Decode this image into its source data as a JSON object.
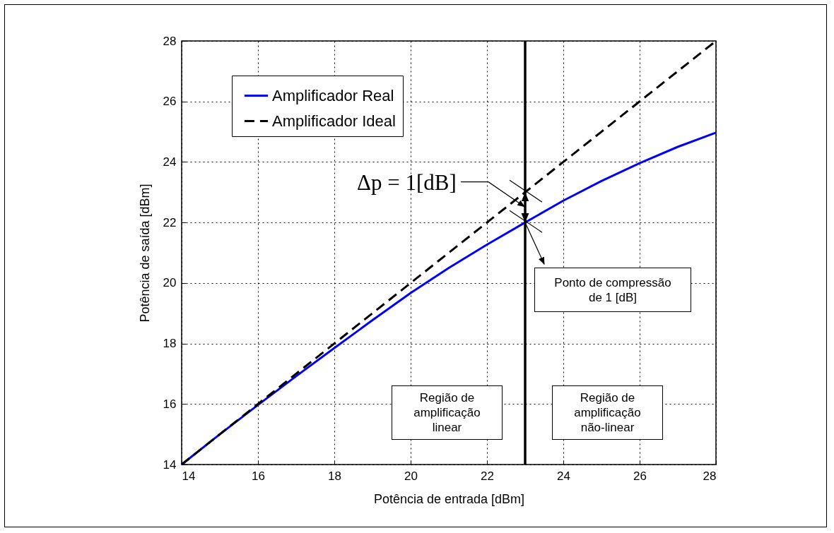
{
  "chart_data": {
    "type": "line",
    "xlabel": "Potência de entrada [dBm]",
    "ylabel": "Potência de saída [dBm]",
    "x": [
      14,
      15,
      16,
      17,
      18,
      19,
      20,
      21,
      22,
      23,
      24,
      25,
      26,
      27,
      28
    ],
    "series": [
      {
        "name": "Amplificador Real",
        "color": "#0000ff",
        "line_style": "solid",
        "values": [
          14,
          15,
          15.97,
          16.92,
          17.85,
          18.77,
          19.67,
          20.5,
          21.27,
          22,
          22.72,
          23.37,
          23.96,
          24.5,
          24.97
        ]
      },
      {
        "name": "Amplificador Ideal",
        "color": "#000000",
        "line_style": "dashed",
        "values": [
          14,
          15,
          16,
          17,
          18,
          19,
          20,
          21,
          22,
          23,
          24,
          25,
          26,
          27,
          28
        ]
      }
    ],
    "xlim": [
      14,
      28
    ],
    "ylim": [
      14,
      28
    ],
    "xticks": [
      14,
      16,
      18,
      20,
      22,
      24,
      26,
      28
    ],
    "yticks": [
      14,
      16,
      18,
      20,
      22,
      24,
      26,
      28
    ],
    "grid": true,
    "legend": "top left",
    "ref_lines": [
      {
        "axis": "x",
        "value": 23,
        "color": "#000000"
      }
    ],
    "annotations": [
      {
        "text": "Δp = 1[dB]",
        "x": 23,
        "y": 22.5
      },
      {
        "text": "Ponto de compressão\nde 1 [dB]",
        "x": 23,
        "y": 22
      },
      "Região de\namplificação\nlinear",
      "Região de\namplificação\nnão-linear"
    ]
  }
}
